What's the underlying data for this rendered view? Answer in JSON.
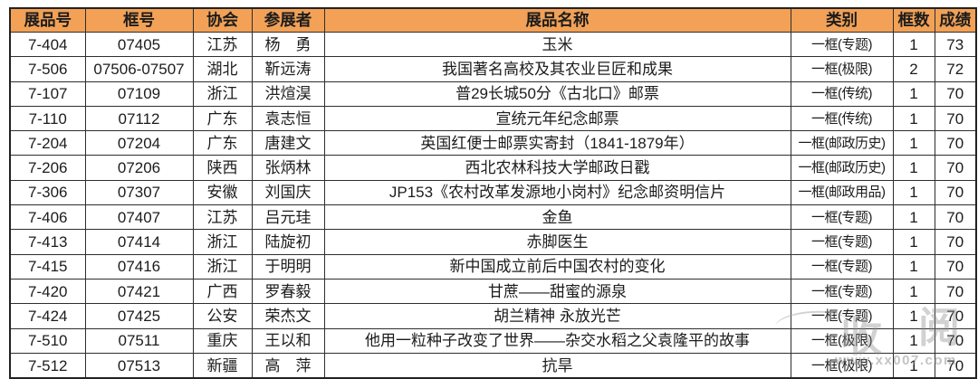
{
  "table": {
    "columns": [
      "展品号",
      "框号",
      "协会",
      "参展者",
      "展品名称",
      "类别",
      "框数",
      "成绩"
    ],
    "rows": [
      [
        "7-404",
        "07405",
        "江苏",
        "杨　勇",
        "玉米",
        "一框(专题)",
        "1",
        "73"
      ],
      [
        "7-506",
        "07506-07507",
        "湖北",
        "靳远涛",
        "我国著名高校及其农业巨匠和成果",
        "一框(极限)",
        "2",
        "72"
      ],
      [
        "7-107",
        "07109",
        "浙江",
        "洪煊淏",
        "普29长城50分《古北口》邮票",
        "一框(传统)",
        "1",
        "70"
      ],
      [
        "7-110",
        "07112",
        "广东",
        "袁志恒",
        "宣统元年纪念邮票",
        "一框(传统)",
        "1",
        "70"
      ],
      [
        "7-204",
        "07204",
        "广东",
        "唐建文",
        "英国红便士邮票实寄封（1841-1879年）",
        "一框(邮政历史)",
        "1",
        "70"
      ],
      [
        "7-206",
        "07206",
        "陕西",
        "张炳林",
        "西北农林科技大学邮政日戳",
        "一框(邮政历史)",
        "1",
        "70"
      ],
      [
        "7-306",
        "07307",
        "安徽",
        "刘国庆",
        "JP153《农村改革发源地小岗村》纪念邮资明信片",
        "一框(邮政用品)",
        "1",
        "70"
      ],
      [
        "7-406",
        "07407",
        "江苏",
        "吕元珪",
        "金鱼",
        "一框(专题)",
        "1",
        "70"
      ],
      [
        "7-413",
        "07414",
        "浙江",
        "陆旋初",
        "赤脚医生",
        "一框(专题)",
        "1",
        "70"
      ],
      [
        "7-415",
        "07416",
        "浙江",
        "于明明",
        "新中国成立前后中国农村的变化",
        "一框(专题)",
        "1",
        "70"
      ],
      [
        "7-420",
        "07421",
        "广西",
        "罗春毅",
        "甘蔗——甜蜜的源泉",
        "一框(专题)",
        "1",
        "70"
      ],
      [
        "7-424",
        "07425",
        "公安",
        "荣杰文",
        "胡兰精神 永放光芒",
        "一框(专题)",
        "1",
        "70"
      ],
      [
        "7-510",
        "07511",
        "重庆",
        "王以和",
        "他用一粒种子改变了世界——杂交水稻之父袁隆平的故事",
        "一框(极限)",
        "1",
        "70"
      ],
      [
        "7-512",
        "07513",
        "新疆",
        "高　萍",
        "抗旱",
        "一框(极限)",
        "1",
        "70"
      ]
    ]
  },
  "colors": {
    "header_bg": "#F2A156",
    "border": "#2e2e2e",
    "text": "#1c1c1c"
  },
  "watermark": {
    "char_left": "收",
    "char_right": "阅",
    "url": "www.xx007.com"
  }
}
